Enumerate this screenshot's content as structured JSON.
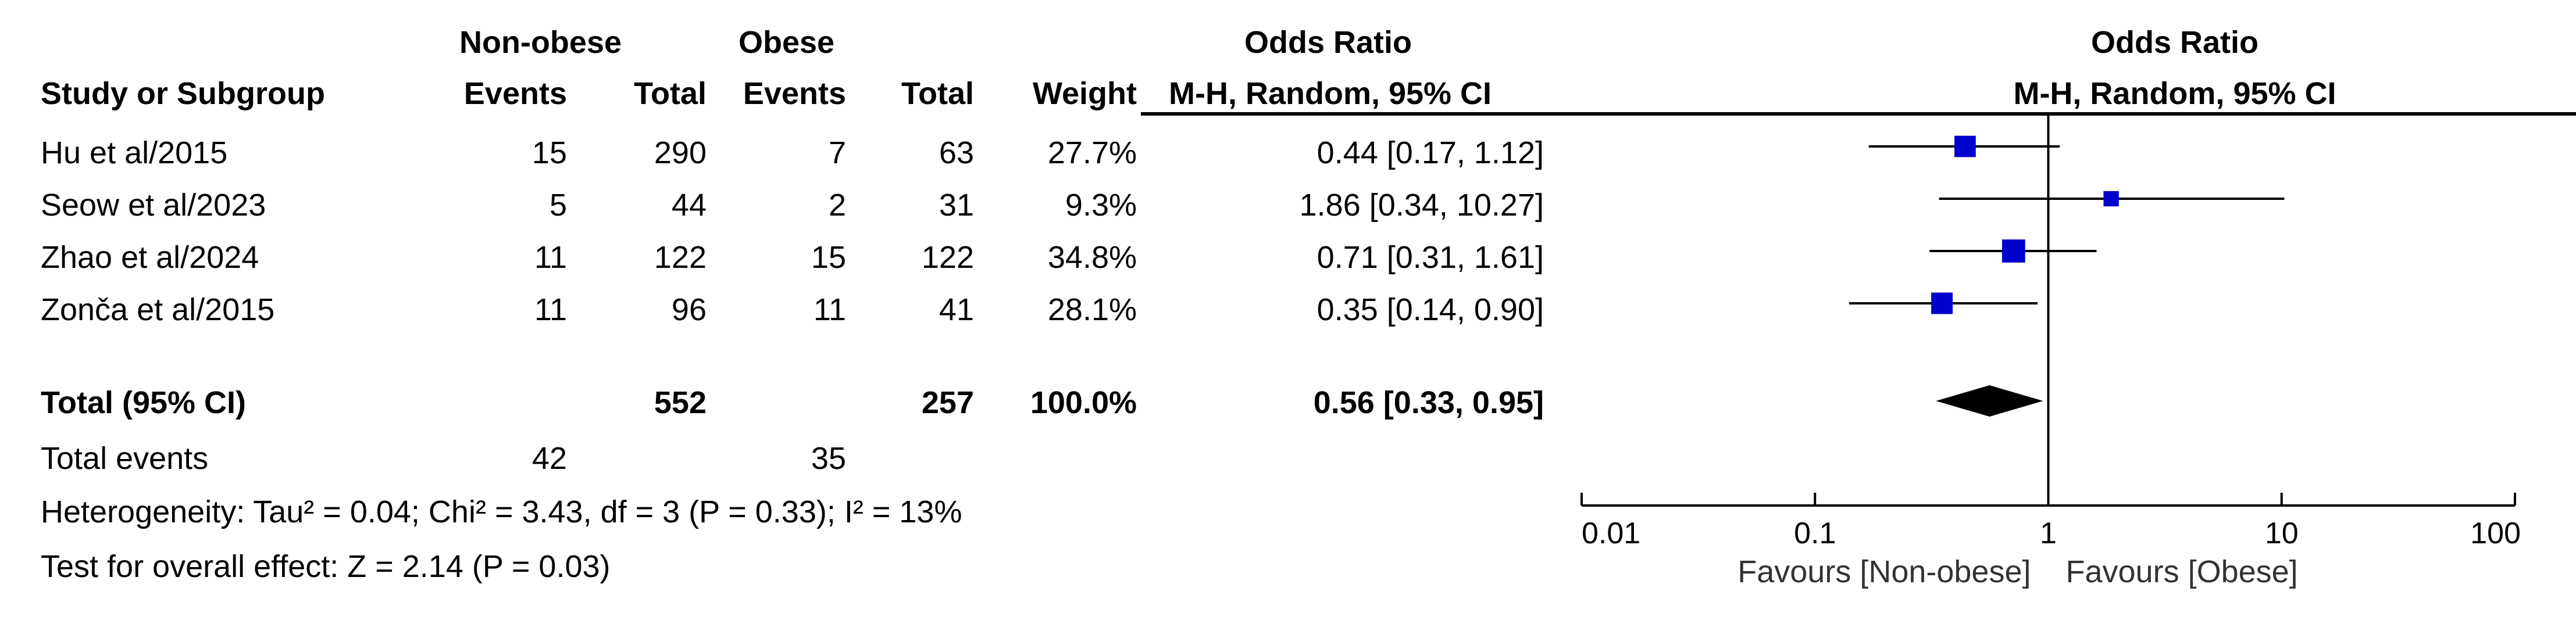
{
  "header": {
    "group1": "Non-obese",
    "group2": "Obese",
    "or_title": "Odds Ratio",
    "study_col": "Study or Subgroup",
    "events_col": "Events",
    "total_col": "Total",
    "weight_col": "Weight",
    "method": "M-H, Random, 95% CI",
    "plot_title": "Odds Ratio",
    "plot_method": "M-H, Random, 95% CI"
  },
  "studies": [
    {
      "name": "Hu et al/2015",
      "e1": "15",
      "t1": "290",
      "e2": "7",
      "t2": "63",
      "weight": "27.7%",
      "or_text": "0.44 [0.17, 1.12]"
    },
    {
      "name": "Seow et al/2023",
      "e1": "5",
      "t1": "44",
      "e2": "2",
      "t2": "31",
      "weight": "9.3%",
      "or_text": "1.86 [0.34, 10.27]"
    },
    {
      "name": "Zhao et al/2024",
      "e1": "11",
      "t1": "122",
      "e2": "15",
      "t2": "122",
      "weight": "34.8%",
      "or_text": "0.71 [0.31, 1.61]"
    },
    {
      "name": "Zonča et al/2015",
      "e1": "11",
      "t1": "96",
      "e2": "11",
      "t2": "41",
      "weight": "28.1%",
      "or_text": "0.35 [0.14, 0.90]"
    }
  ],
  "total": {
    "label": "Total (95% CI)",
    "t1": "552",
    "t2": "257",
    "weight": "100.0%",
    "or_text": "0.56 [0.33, 0.95]"
  },
  "events": {
    "label": "Total events",
    "e1": "42",
    "e2": "35"
  },
  "heterogeneity": "Heterogeneity: Tau² = 0.04; Chi² = 3.43, df = 3 (P = 0.33); I² = 13%",
  "overall_effect": "Test for overall effect: Z = 2.14 (P = 0.03)",
  "chart_data": {
    "type": "scatter",
    "x_scale": "log",
    "xlim": [
      0.01,
      100
    ],
    "reference_line": 1,
    "ticks": [
      "0.01",
      "0.1",
      "1",
      "10",
      "100"
    ],
    "tick_values": [
      0.01,
      0.1,
      1,
      10,
      100
    ],
    "favours_left": "Favours [Non-obese]",
    "favours_right": "Favours [Obese]",
    "marker_color": "#0000cc",
    "points": [
      {
        "study": "Hu et al/2015",
        "or": 0.44,
        "lo": 0.17,
        "hi": 1.12,
        "weight": 27.7
      },
      {
        "study": "Seow et al/2023",
        "or": 1.86,
        "lo": 0.34,
        "hi": 10.27,
        "weight": 9.3
      },
      {
        "study": "Zhao et al/2024",
        "or": 0.71,
        "lo": 0.31,
        "hi": 1.61,
        "weight": 34.8
      },
      {
        "study": "Zonča et al/2015",
        "or": 0.35,
        "lo": 0.14,
        "hi": 0.9,
        "weight": 28.1
      }
    ],
    "pooled": {
      "or": 0.56,
      "lo": 0.33,
      "hi": 0.95
    }
  }
}
